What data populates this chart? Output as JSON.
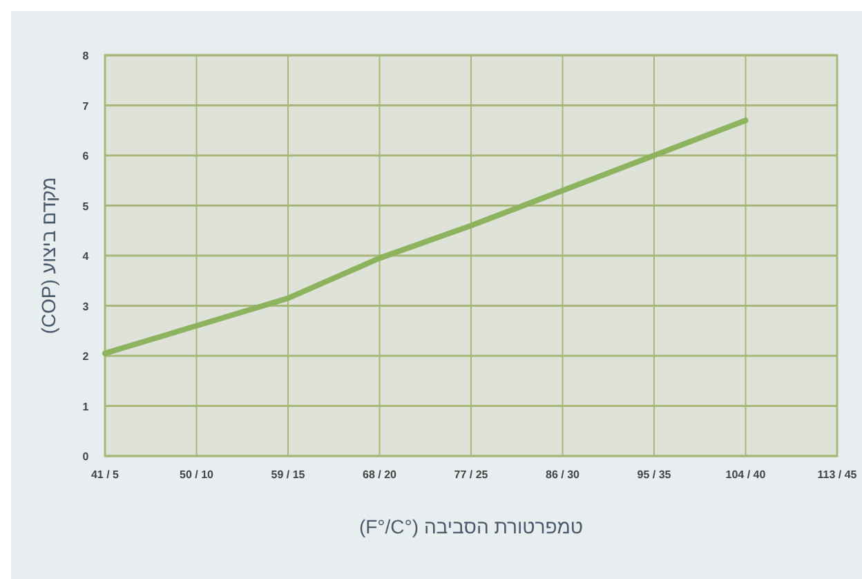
{
  "chart_data": {
    "type": "line",
    "xlabel": "(F°/C°) טמפרטורת הסביבה",
    "ylabel": "מקדם ביצוע (COP)",
    "categories": [
      "41 / 5",
      "50 / 10",
      "59 / 15",
      "68 / 20",
      "77 / 25",
      "86 / 30",
      "95 / 35",
      "104 / 40",
      "113 / 45"
    ],
    "series": [
      {
        "color": "#8db35f",
        "values": [
          2.05,
          2.6,
          3.15,
          3.95,
          4.6,
          5.3,
          6.0,
          6.7,
          null
        ]
      }
    ],
    "ylim": [
      0,
      8
    ],
    "yticks": [
      0,
      1,
      2,
      3,
      4,
      5,
      6,
      7,
      8
    ],
    "grid": true,
    "line_style": "solid"
  }
}
